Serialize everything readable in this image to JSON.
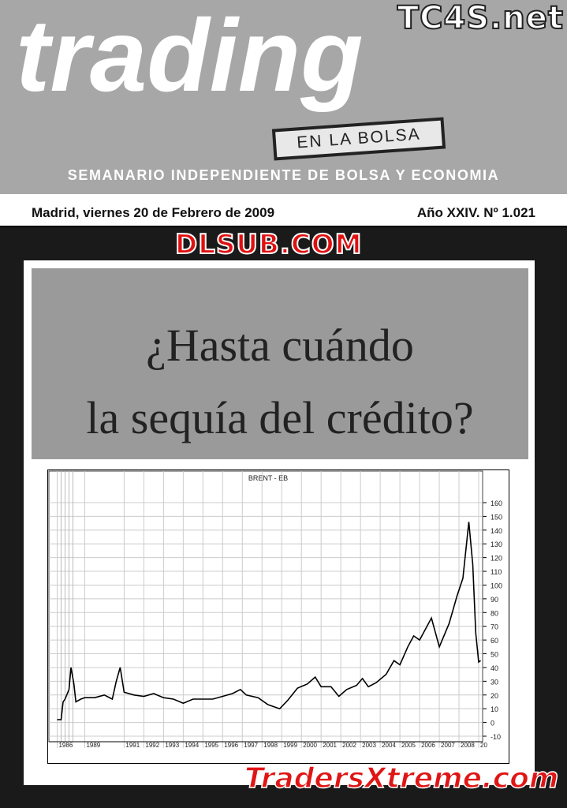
{
  "masthead": {
    "title": "trading",
    "badge": "EN LA BOLSA",
    "subtitle": "SEMANARIO INDEPENDIENTE DE BOLSA Y ECONOMIA",
    "watermark_logo": "TC4S.net"
  },
  "dateline": {
    "date": "Madrid, viernes 20 de Febrero de 2009",
    "issue": "Año XXIV. Nº 1.021"
  },
  "headline": {
    "line1": "¿Hasta cuándo",
    "line2": "la sequía del crédito?"
  },
  "watermarks": {
    "center": "DLSUB.COM",
    "bottom": "TradersXtreme.com"
  },
  "chart_data": {
    "type": "line",
    "title": "BRENT - EB",
    "grid": true,
    "y_axis_side": "right",
    "ylim": [
      -10,
      160
    ],
    "yticks": [
      -10,
      0,
      10,
      20,
      30,
      40,
      50,
      60,
      70,
      80,
      90,
      100,
      110,
      120,
      130,
      140,
      150,
      160
    ],
    "xticks": [
      "1986",
      "1989",
      "1991",
      "1992",
      "1993",
      "1994",
      "1995",
      "1996",
      "1997",
      "1998",
      "1999",
      "2000",
      "2001",
      "2002",
      "2003",
      "2004",
      "2005",
      "2006",
      "2007",
      "2008",
      "20"
    ],
    "xlim": [
      1987.5,
      2009.2
    ],
    "points": [
      [
        1987.6,
        2
      ],
      [
        1987.8,
        2
      ],
      [
        1987.9,
        15
      ],
      [
        1988.0,
        17
      ],
      [
        1988.2,
        24
      ],
      [
        1988.3,
        40
      ],
      [
        1988.45,
        28
      ],
      [
        1988.55,
        15
      ],
      [
        1988.8,
        17
      ],
      [
        1989.0,
        18
      ],
      [
        1989.5,
        18
      ],
      [
        1990.0,
        20
      ],
      [
        1990.4,
        17
      ],
      [
        1990.6,
        30
      ],
      [
        1990.8,
        40
      ],
      [
        1991.0,
        22
      ],
      [
        1991.5,
        20
      ],
      [
        1992.0,
        19
      ],
      [
        1992.5,
        21
      ],
      [
        1993.0,
        18
      ],
      [
        1993.5,
        17
      ],
      [
        1994.0,
        14
      ],
      [
        1994.5,
        17
      ],
      [
        1995.0,
        17
      ],
      [
        1995.5,
        17
      ],
      [
        1996.0,
        19
      ],
      [
        1996.5,
        21
      ],
      [
        1996.9,
        24
      ],
      [
        1997.2,
        20
      ],
      [
        1997.8,
        18
      ],
      [
        1998.3,
        13
      ],
      [
        1998.9,
        10
      ],
      [
        1999.3,
        16
      ],
      [
        1999.8,
        25
      ],
      [
        2000.3,
        28
      ],
      [
        2000.7,
        33
      ],
      [
        2001.0,
        26
      ],
      [
        2001.5,
        26
      ],
      [
        2001.9,
        19
      ],
      [
        2002.3,
        24
      ],
      [
        2002.8,
        27
      ],
      [
        2003.1,
        32
      ],
      [
        2003.4,
        26
      ],
      [
        2003.8,
        29
      ],
      [
        2004.3,
        35
      ],
      [
        2004.7,
        45
      ],
      [
        2005.0,
        42
      ],
      [
        2005.4,
        55
      ],
      [
        2005.7,
        63
      ],
      [
        2006.0,
        60
      ],
      [
        2006.6,
        76
      ],
      [
        2007.0,
        55
      ],
      [
        2007.5,
        72
      ],
      [
        2007.9,
        92
      ],
      [
        2008.2,
        105
      ],
      [
        2008.5,
        146
      ],
      [
        2008.7,
        115
      ],
      [
        2008.85,
        65
      ],
      [
        2009.0,
        44
      ],
      [
        2009.1,
        45
      ]
    ]
  }
}
